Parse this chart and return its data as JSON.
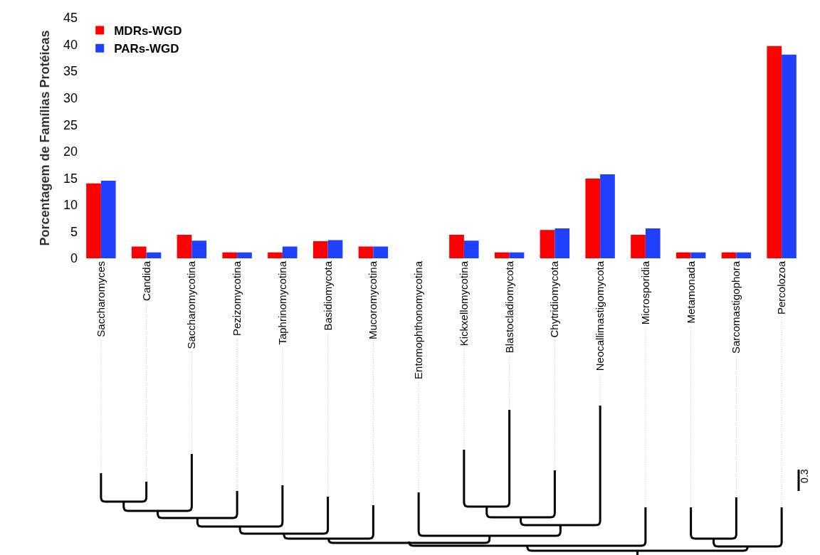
{
  "chart_data": {
    "type": "bar",
    "ylabel": "Porcentagem de Famílias Protéicas",
    "categories": [
      "Saccharomyces",
      "Candida",
      "Saccharomycotina",
      "Pezizomycotina",
      "Taphrinomycotina",
      "Basidiomycota",
      "Mucoromycotina",
      "Entomophthonomycotina",
      "Kickxellomycotina",
      "Blastocladiomycota",
      "Chytridiomycota",
      "Neocallimastigomycota",
      "Microsporidia",
      "Metamonada",
      "Sarcomastigophora",
      "Percolozoa"
    ],
    "series": [
      {
        "name": "MDRs-WGD",
        "color": "#ff0000",
        "values": [
          14.0,
          2.2,
          4.4,
          1.1,
          1.1,
          3.2,
          2.2,
          0,
          4.4,
          1.1,
          5.3,
          14.9,
          4.4,
          1.1,
          1.1,
          39.7
        ]
      },
      {
        "name": "PARs-WGD",
        "color": "#2040ff",
        "values": [
          14.5,
          1.1,
          3.3,
          1.1,
          2.2,
          3.4,
          2.2,
          0,
          3.3,
          1.1,
          5.6,
          15.7,
          5.6,
          1.1,
          1.1,
          38.1
        ]
      }
    ],
    "ylim": [
      0,
      45
    ],
    "yticks": [
      0,
      5,
      10,
      15,
      20,
      25,
      30,
      35,
      40,
      45
    ],
    "grid": false,
    "legend": "top left",
    "annotations": [
      "0.3"
    ]
  }
}
